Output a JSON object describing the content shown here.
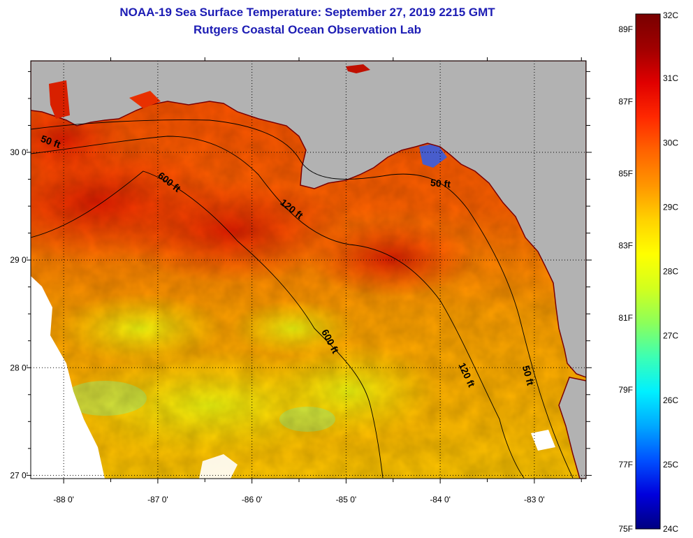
{
  "title": {
    "line1": "NOAA-19 Sea Surface Temperature:  September 27, 2019 2215 GMT",
    "line2": "Rutgers Coastal Ocean Observation Lab"
  },
  "map": {
    "lon_range": [
      -88.35,
      -82.45
    ],
    "lat_range": [
      26.97,
      30.85
    ],
    "lon_ticks": [
      {
        "value": -88,
        "label": "-88 0'"
      },
      {
        "value": -87,
        "label": "-87 0'"
      },
      {
        "value": -86,
        "label": "-86 0'"
      },
      {
        "value": -85,
        "label": "-85 0'"
      },
      {
        "value": -84,
        "label": "-84 0'"
      },
      {
        "value": -83,
        "label": "-83 0'"
      }
    ],
    "lat_ticks": [
      {
        "value": 30,
        "label": "30 0'"
      },
      {
        "value": 29,
        "label": "29 0'"
      },
      {
        "value": 28,
        "label": "28 0'"
      },
      {
        "value": 27,
        "label": "27 0'"
      }
    ],
    "grid": "dotted",
    "land_color": "#b2b2b2",
    "cloud_color": "#ffffff",
    "depth_labels": [
      {
        "label": "50 ft",
        "lon": -88.15,
        "lat": 30.07,
        "rotate": 20
      },
      {
        "label": "600 ft",
        "lon": -86.9,
        "lat": 29.7,
        "rotate": 38
      },
      {
        "label": "120 ft",
        "lon": -85.6,
        "lat": 29.45,
        "rotate": 38
      },
      {
        "label": "50 ft",
        "lon": -84.0,
        "lat": 29.68,
        "rotate": 5
      },
      {
        "label": "600 ft",
        "lon": -85.2,
        "lat": 28.23,
        "rotate": 62
      },
      {
        "label": "120 ft",
        "lon": -83.75,
        "lat": 27.92,
        "rotate": 65
      },
      {
        "label": "50 ft",
        "lon": -83.1,
        "lat": 27.92,
        "rotate": 75
      }
    ]
  },
  "colorbar": {
    "colors": [
      "#000080",
      "#0000dc",
      "#0050ff",
      "#00a8ff",
      "#00f0ff",
      "#3cffb4",
      "#8cff5a",
      "#d2ff1e",
      "#ffff00",
      "#ffd200",
      "#ff9600",
      "#ff6400",
      "#ff2800",
      "#e00000",
      "#a00000",
      "#780000"
    ],
    "celsius_labels": [
      {
        "label": "32C",
        "frac": 1.0
      },
      {
        "label": "31C",
        "frac": 0.875
      },
      {
        "label": "30C",
        "frac": 0.75
      },
      {
        "label": "29C",
        "frac": 0.625
      },
      {
        "label": "28C",
        "frac": 0.5
      },
      {
        "label": "27C",
        "frac": 0.375
      },
      {
        "label": "26C",
        "frac": 0.25
      },
      {
        "label": "25C",
        "frac": 0.125
      },
      {
        "label": "24C",
        "frac": 0.0
      }
    ],
    "fahrenheit_labels": [
      {
        "label": "89F",
        "frac": 0.97
      },
      {
        "label": "87F",
        "frac": 0.83
      },
      {
        "label": "85F",
        "frac": 0.69
      },
      {
        "label": "83F",
        "frac": 0.55
      },
      {
        "label": "81F",
        "frac": 0.41
      },
      {
        "label": "79F",
        "frac": 0.27
      },
      {
        "label": "77F",
        "frac": 0.125
      },
      {
        "label": "75F",
        "frac": 0.0
      }
    ]
  }
}
